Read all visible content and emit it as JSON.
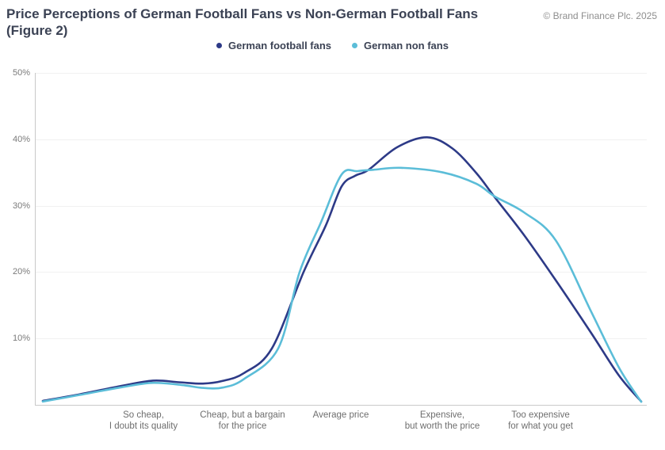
{
  "header": {
    "title_line1": "Price Perceptions of German Football Fans vs Non-German Football Fans",
    "title_line2": "(Figure 2)",
    "copyright": "© Brand Finance Plc. 2025"
  },
  "chart_data": {
    "type": "line",
    "smooth": true,
    "title": "Price Perceptions of German Football Fans vs Non-German Football Fans (Figure 2)",
    "ylabel": "",
    "xlabel": "",
    "ylim": [
      0,
      50
    ],
    "y_ticks": [
      "50%",
      "40%",
      "30%",
      "20%",
      "10%"
    ],
    "grid": "horizontal",
    "legend_position": "top-center",
    "categories": [
      "So cheap, I doubt its quality",
      "Cheap, but a bargain for the price",
      "Average price",
      "Expensive, but worth the price",
      "Too expensive for what you get"
    ],
    "x_labels": [
      {
        "line1": "So cheap,",
        "line2": "I doubt its quality"
      },
      {
        "line1": "Cheap, but a bargain",
        "line2": "for the price"
      },
      {
        "line1": "Average price",
        "line2": ""
      },
      {
        "line1": "Expensive,",
        "line2": "but worth the price"
      },
      {
        "line1": "Too expensive",
        "line2": "for what you get"
      }
    ],
    "series": [
      {
        "name": "German football fans",
        "color": "#2d3a87",
        "values_pct": [
          3.7,
          4.8,
          32.9,
          39.8,
          22.0
        ],
        "peak_pct": 40.3,
        "curve_samples_x_pct": [
          [
            53,
            0.6
          ],
          [
            100,
            1.6
          ],
          [
            150,
            2.8
          ],
          [
            192,
            3.65
          ],
          [
            225,
            3.4
          ],
          [
            255,
            3.2
          ],
          [
            280,
            3.6
          ],
          [
            307,
            4.8
          ],
          [
            342,
            8.5
          ],
          [
            382,
            20.0
          ],
          [
            410,
            27.0
          ],
          [
            430,
            32.9
          ],
          [
            447,
            34.5
          ],
          [
            464,
            35.4
          ],
          [
            500,
            38.8
          ],
          [
            538,
            40.3
          ],
          [
            570,
            38.6
          ],
          [
            600,
            34.9
          ],
          [
            623,
            31.3
          ],
          [
            660,
            25.6
          ],
          [
            700,
            18.8
          ],
          [
            745,
            10.8
          ],
          [
            780,
            4.4
          ],
          [
            808,
            0.5
          ]
        ]
      },
      {
        "name": "German non fans",
        "color": "#5bbdd8",
        "values_pct": [
          3.3,
          3.9,
          34.7,
          35.0,
          26.7
        ],
        "peak_pct": 35.7,
        "curve_samples_x_pct": [
          [
            53,
            0.5
          ],
          [
            100,
            1.5
          ],
          [
            150,
            2.6
          ],
          [
            190,
            3.3
          ],
          [
            228,
            3.0
          ],
          [
            255,
            2.55
          ],
          [
            280,
            2.6
          ],
          [
            307,
            3.9
          ],
          [
            350,
            8.5
          ],
          [
            377,
            20.0
          ],
          [
            404,
            27.5
          ],
          [
            430,
            34.7
          ],
          [
            450,
            35.2
          ],
          [
            470,
            35.4
          ],
          [
            505,
            35.7
          ],
          [
            558,
            35.0
          ],
          [
            600,
            33.3
          ],
          [
            623,
            31.4
          ],
          [
            660,
            29.0
          ],
          [
            700,
            24.8
          ],
          [
            745,
            14.0
          ],
          [
            780,
            5.6
          ],
          [
            808,
            0.45
          ]
        ]
      }
    ]
  }
}
